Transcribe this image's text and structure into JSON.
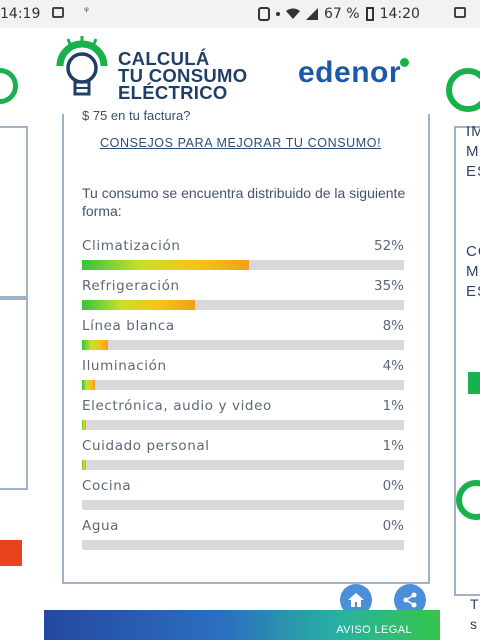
{
  "status_bar": {
    "time_left": "14:19",
    "battery": "67 %",
    "time_right": "14:20"
  },
  "header": {
    "title_lines": [
      "CALCULÁ",
      "TU CONSUMO",
      "ELÉCTRICO"
    ],
    "brand": "edenor"
  },
  "card": {
    "cut_text": "$ 75 en tu factura?",
    "tips_link": "CONSEJOS PARA MEJORAR TU CONSUMO!",
    "intro": "Tu consumo se encuentra distribuido de la siguiente forma:",
    "rows": [
      {
        "label": "Climatización",
        "pct": "52%",
        "value": 0.52
      },
      {
        "label": "Refrigeración",
        "pct": "35%",
        "value": 0.35
      },
      {
        "label": "Línea blanca",
        "pct": "8%",
        "value": 0.08
      },
      {
        "label": "Iluminación",
        "pct": "4%",
        "value": 0.04
      },
      {
        "label": "Electrónica, audio y video",
        "pct": "1%",
        "value": 0.01
      },
      {
        "label": "Cuidado personal",
        "pct": "1%",
        "value": 0.01
      },
      {
        "label": "Cocina",
        "pct": "0%",
        "value": 0
      },
      {
        "label": "Agua",
        "pct": "0%",
        "value": 0
      }
    ]
  },
  "right_peek": {
    "lines_a": [
      "IM",
      "M",
      "ES"
    ],
    "lines_b": [
      "CO",
      "M",
      "ES"
    ],
    "line_c": "T",
    "line_d": "s"
  },
  "footer": {
    "link": "AVISO LEGAL"
  },
  "colors": {
    "brand_blue": "#203f67",
    "brand_green": "#19b14b",
    "bar_gradient_end": "#f0a01a"
  }
}
